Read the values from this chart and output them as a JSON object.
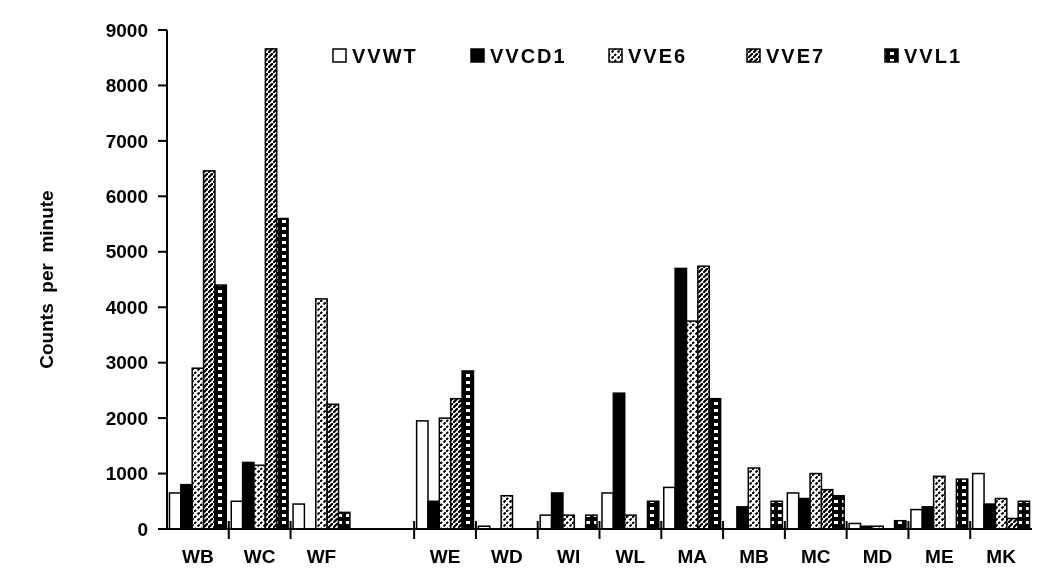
{
  "chart_data": {
    "type": "bar",
    "ylabel": "Counts  per  minute",
    "categories": [
      "WB",
      "WC",
      "WF",
      null,
      "WE",
      "WD",
      "WI",
      "WL",
      "MA",
      "MB",
      "MC",
      "MD",
      "ME",
      "MK"
    ],
    "series": [
      {
        "name": "VVWT",
        "color": "#ffffff",
        "values": [
          650,
          500,
          450,
          0,
          1950,
          50,
          250,
          650,
          750,
          0,
          650,
          100,
          350,
          1000
        ]
      },
      {
        "name": "VVCD1",
        "color": "#000000",
        "values": [
          800,
          1200,
          0,
          0,
          500,
          0,
          650,
          2450,
          4700,
          400,
          550,
          50,
          400,
          450
        ]
      },
      {
        "name": "VVE6",
        "color": "#000000",
        "values": [
          2900,
          1150,
          4150,
          0,
          2000,
          600,
          250,
          250,
          3750,
          1100,
          1000,
          50,
          950,
          550
        ]
      },
      {
        "name": "VVE7",
        "color": "#000000",
        "values": [
          6460,
          8660,
          2250,
          0,
          2350,
          0,
          0,
          0,
          4740,
          0,
          710,
          0,
          0,
          190
        ]
      },
      {
        "name": "VVL1",
        "color": "#000000",
        "values": [
          4400,
          5600,
          300,
          0,
          2850,
          0,
          250,
          500,
          2350,
          500,
          600,
          150,
          900,
          500
        ]
      }
    ],
    "ylim": [
      0,
      9000
    ],
    "yticks": [
      0,
      1000,
      2000,
      3000,
      4000,
      5000,
      6000,
      7000,
      8000,
      9000
    ],
    "grid": false,
    "legend": "top right"
  }
}
